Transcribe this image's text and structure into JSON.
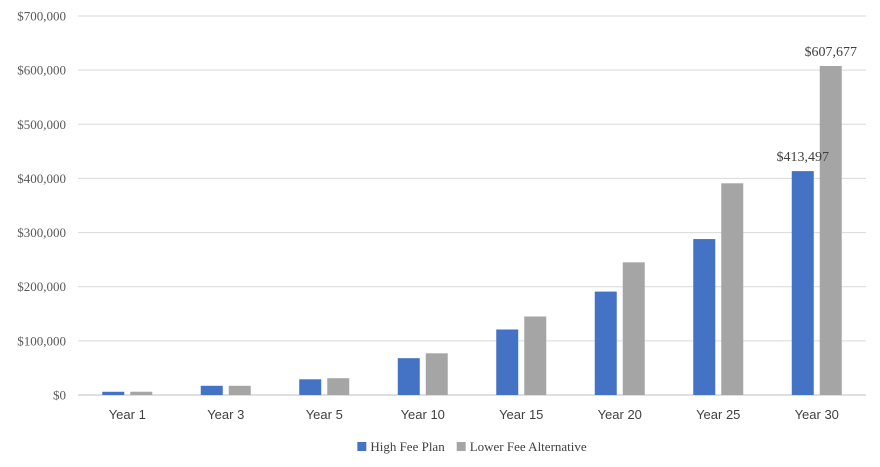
{
  "chart_data": {
    "type": "bar",
    "title": "",
    "xlabel": "",
    "ylabel": "",
    "categories": [
      "Year 1",
      "Year 3",
      "Year 5",
      "Year 10",
      "Year 15",
      "Year 20",
      "Year 25",
      "Year 30"
    ],
    "series": [
      {
        "name": "High Fee Plan",
        "color": "#4472c4",
        "values": [
          6000,
          17000,
          29000,
          68000,
          121000,
          191000,
          288000,
          413497
        ]
      },
      {
        "name": "Lower Fee Alternative",
        "color": "#a5a5a5",
        "values": [
          6000,
          17000,
          31000,
          77000,
          145000,
          245000,
          391000,
          607677
        ]
      }
    ],
    "data_labels": [
      {
        "series": 0,
        "category": 7,
        "text": "$413,497"
      },
      {
        "series": 1,
        "category": 7,
        "text": "$607,677"
      }
    ],
    "ylim": [
      0,
      700000
    ],
    "yticks": [
      0,
      100000,
      200000,
      300000,
      400000,
      500000,
      600000,
      700000
    ],
    "ytick_labels": [
      "$0",
      "$100,000",
      "$200,000",
      "$300,000",
      "$400,000",
      "$500,000",
      "$600,000",
      "$700,000"
    ],
    "grid": true,
    "legend_position": "bottom"
  }
}
